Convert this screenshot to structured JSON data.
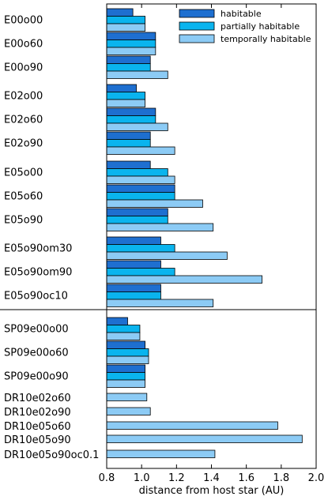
{
  "chart_data": {
    "type": "bar",
    "orientation": "horizontal",
    "xlabel": "distance from host star (AU)",
    "xlim": [
      0.8,
      2.0
    ],
    "xticks": [
      "0.8",
      "1.0",
      "1.2",
      "1.4",
      "1.6",
      "1.8",
      "2.0"
    ],
    "legend_position": "top-right",
    "series": [
      {
        "name": "habitable",
        "color": "#1e6fd0"
      },
      {
        "name": "partially habitable",
        "color": "#0ab4ee"
      },
      {
        "name": "temporally habitable",
        "color": "#8ccbf5"
      }
    ],
    "categories": [
      {
        "label": "E00o00",
        "values": [
          0.95,
          1.02,
          1.02
        ]
      },
      {
        "label": "E00o60",
        "values": [
          1.08,
          1.08,
          1.08
        ]
      },
      {
        "label": "E00o90",
        "values": [
          1.05,
          1.05,
          1.15
        ]
      },
      {
        "label": "E02o00",
        "values": [
          0.97,
          1.02,
          1.02
        ]
      },
      {
        "label": "E02o60",
        "values": [
          1.08,
          1.08,
          1.15
        ]
      },
      {
        "label": "E02o90",
        "values": [
          1.05,
          1.05,
          1.19
        ]
      },
      {
        "label": "E05o00",
        "values": [
          1.05,
          1.15,
          1.19
        ]
      },
      {
        "label": "E05o60",
        "values": [
          1.19,
          1.19,
          1.35
        ]
      },
      {
        "label": "E05o90",
        "values": [
          1.15,
          1.15,
          1.41
        ]
      },
      {
        "label": "E05o90om30",
        "values": [
          1.11,
          1.19,
          1.49
        ]
      },
      {
        "label": "E05o90om90",
        "values": [
          1.11,
          1.19,
          1.69
        ]
      },
      {
        "label": "E05o90oc10",
        "values": [
          1.11,
          1.11,
          1.41
        ]
      },
      {
        "label": "SP09e00o00",
        "values": [
          0.92,
          0.99,
          0.99
        ]
      },
      {
        "label": "SP09e00o60",
        "values": [
          1.02,
          1.04,
          1.04
        ]
      },
      {
        "label": "SP09e00o90",
        "values": [
          1.02,
          1.02,
          1.02
        ]
      },
      {
        "label": "DR10e02o60",
        "values": [
          null,
          null,
          1.03
        ]
      },
      {
        "label": "DR10e02o90",
        "values": [
          null,
          null,
          1.05
        ]
      },
      {
        "label": "DR10e05o60",
        "values": [
          null,
          null,
          1.78
        ]
      },
      {
        "label": "DR10e05o90",
        "values": [
          null,
          null,
          1.92
        ]
      },
      {
        "label": "DR10e05o90oc0.1",
        "values": [
          null,
          null,
          1.42
        ]
      }
    ]
  }
}
